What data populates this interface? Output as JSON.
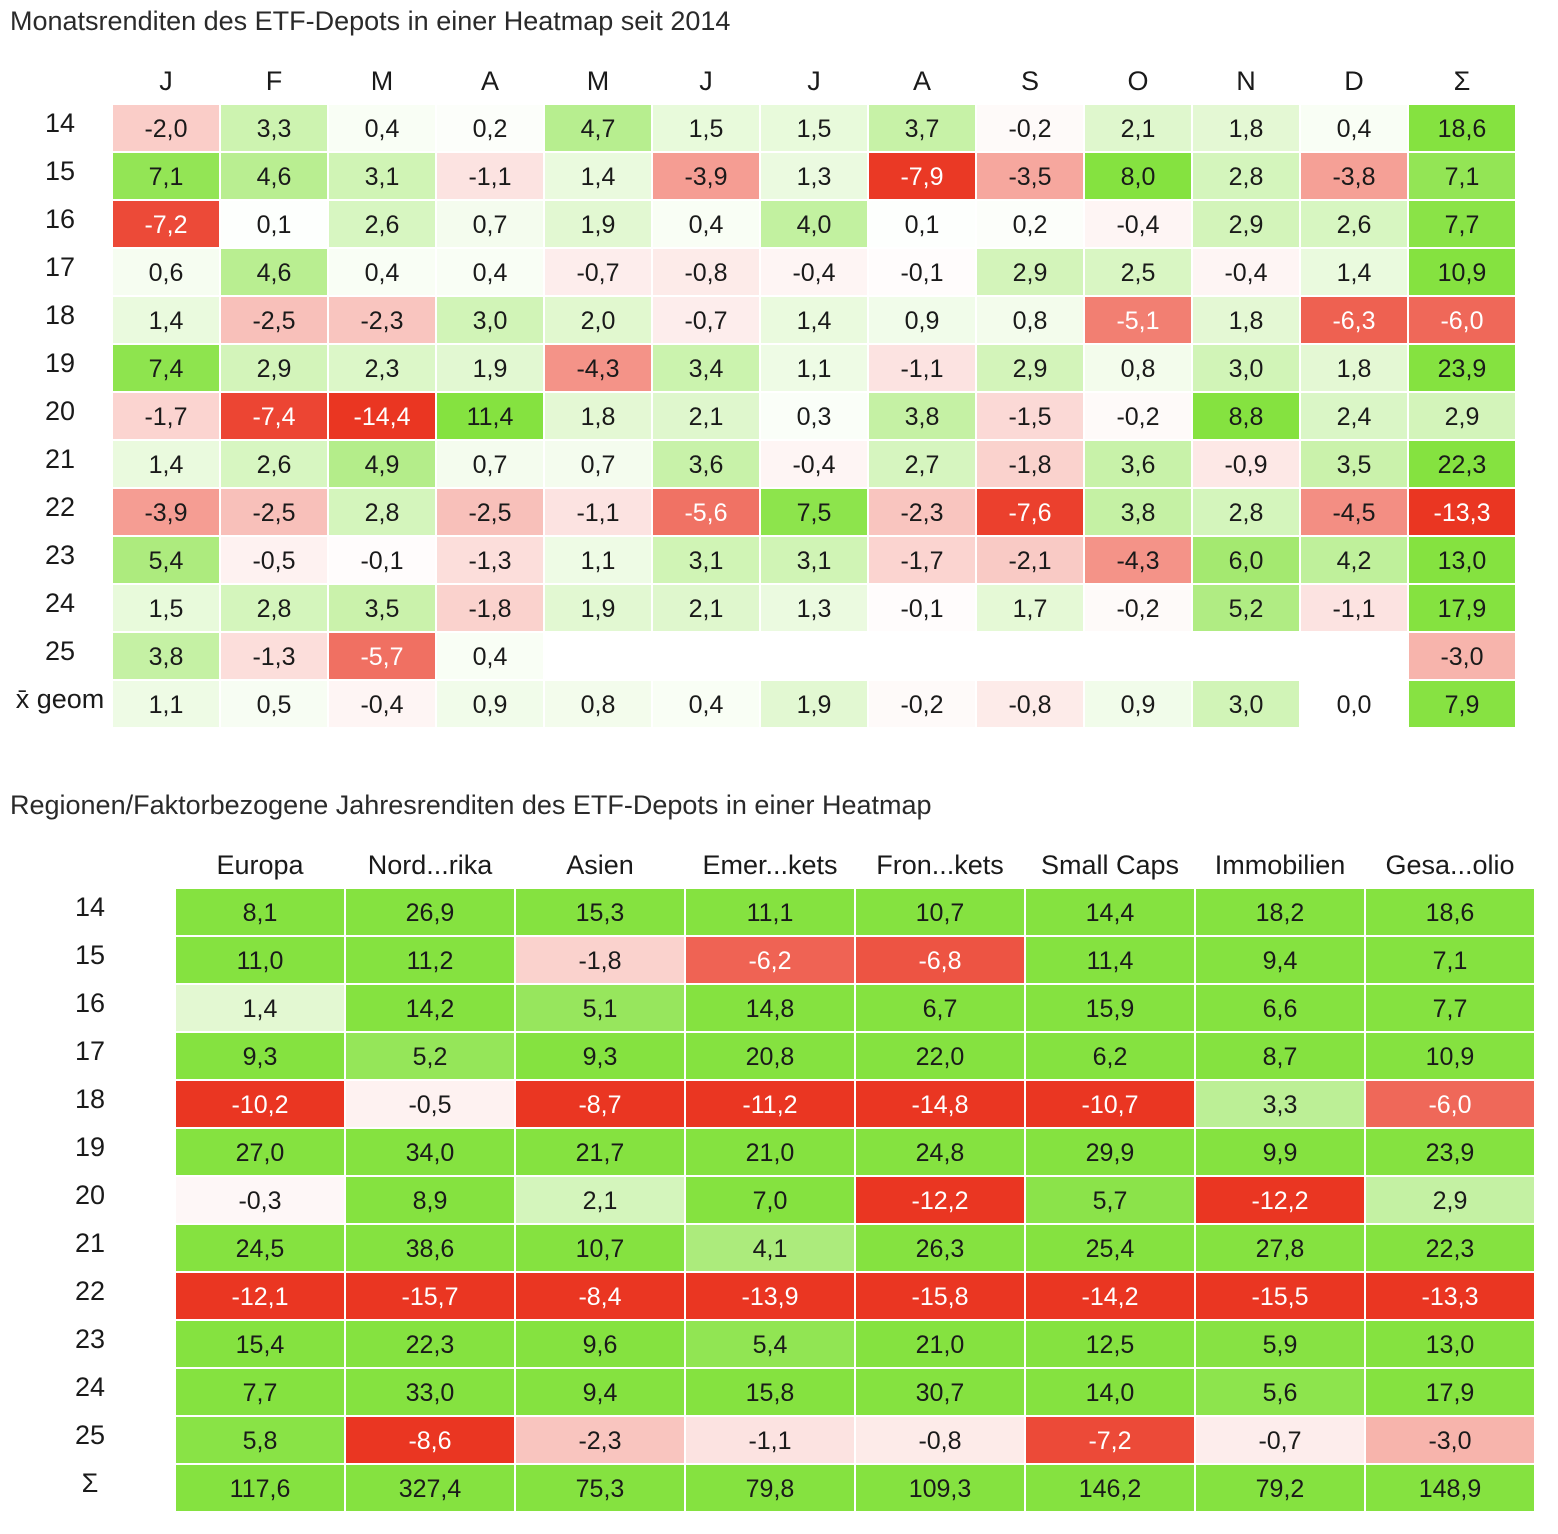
{
  "chart_data": [
    {
      "type": "heatmap",
      "title": "Monatsrenditen des ETF-Depots in einer Heatmap seit 2014",
      "columns": [
        "J",
        "F",
        "M",
        "A",
        "M",
        "J",
        "J",
        "A",
        "S",
        "O",
        "N",
        "D",
        "Σ"
      ],
      "rows": [
        "14",
        "15",
        "16",
        "17",
        "18",
        "19",
        "20",
        "21",
        "22",
        "23",
        "24",
        "25",
        "x̄ geom"
      ],
      "values": [
        [
          "-2,0",
          "3,3",
          "0,4",
          "0,2",
          "4,7",
          "1,5",
          "1,5",
          "3,7",
          "-0,2",
          "2,1",
          "1,8",
          "0,4",
          "18,6"
        ],
        [
          "7,1",
          "4,6",
          "3,1",
          "-1,1",
          "1,4",
          "-3,9",
          "1,3",
          "-7,9",
          "-3,5",
          "8,0",
          "2,8",
          "-3,8",
          "7,1"
        ],
        [
          "-7,2",
          "0,1",
          "2,6",
          "0,7",
          "1,9",
          "0,4",
          "4,0",
          "0,1",
          "0,2",
          "-0,4",
          "2,9",
          "2,6",
          "7,7"
        ],
        [
          "0,6",
          "4,6",
          "0,4",
          "0,4",
          "-0,7",
          "-0,8",
          "-0,4",
          "-0,1",
          "2,9",
          "2,5",
          "-0,4",
          "1,4",
          "10,9"
        ],
        [
          "1,4",
          "-2,5",
          "-2,3",
          "3,0",
          "2,0",
          "-0,7",
          "1,4",
          "0,9",
          "0,8",
          "-5,1",
          "1,8",
          "-6,3",
          "-6,0"
        ],
        [
          "7,4",
          "2,9",
          "2,3",
          "1,9",
          "-4,3",
          "3,4",
          "1,1",
          "-1,1",
          "2,9",
          "0,8",
          "3,0",
          "1,8",
          "23,9"
        ],
        [
          "-1,7",
          "-7,4",
          "-14,4",
          "11,4",
          "1,8",
          "2,1",
          "0,3",
          "3,8",
          "-1,5",
          "-0,2",
          "8,8",
          "2,4",
          "2,9"
        ],
        [
          "1,4",
          "2,6",
          "4,9",
          "0,7",
          "0,7",
          "3,6",
          "-0,4",
          "2,7",
          "-1,8",
          "3,6",
          "-0,9",
          "3,5",
          "22,3"
        ],
        [
          "-3,9",
          "-2,5",
          "2,8",
          "-2,5",
          "-1,1",
          "-5,6",
          "7,5",
          "-2,3",
          "-7,6",
          "3,8",
          "2,8",
          "-4,5",
          "-13,3"
        ],
        [
          "5,4",
          "-0,5",
          "-0,1",
          "-1,3",
          "1,1",
          "3,1",
          "3,1",
          "-1,7",
          "-2,1",
          "-4,3",
          "6,0",
          "4,2",
          "13,0"
        ],
        [
          "1,5",
          "2,8",
          "3,5",
          "-1,8",
          "1,9",
          "2,1",
          "1,3",
          "-0,1",
          "1,7",
          "-0,2",
          "5,2",
          "-1,1",
          "17,9"
        ],
        [
          "3,8",
          "-1,3",
          "-5,7",
          "0,4",
          null,
          null,
          null,
          null,
          null,
          null,
          null,
          null,
          "-3,0"
        ],
        [
          "1,1",
          "0,5",
          "-0,4",
          "0,9",
          "0,8",
          "0,4",
          "1,9",
          "-0,2",
          "-0,8",
          "0,9",
          "3,0",
          "0,0",
          "7,9"
        ]
      ]
    },
    {
      "type": "heatmap",
      "title": "Regionen/Faktorbezogene Jahresrenditen des ETF-Depots in einer Heatmap",
      "columns": [
        "Europa",
        "Nord...rika",
        "Asien",
        "Emer...kets",
        "Fron...kets",
        "Small Caps",
        "Immobilien",
        "Gesa...olio"
      ],
      "rows": [
        "14",
        "15",
        "16",
        "17",
        "18",
        "19",
        "20",
        "21",
        "22",
        "23",
        "24",
        "25",
        "Σ"
      ],
      "values": [
        [
          "8,1",
          "26,9",
          "15,3",
          "11,1",
          "10,7",
          "14,4",
          "18,2",
          "18,6"
        ],
        [
          "11,0",
          "11,2",
          "-1,8",
          "-6,2",
          "-6,8",
          "11,4",
          "9,4",
          "7,1"
        ],
        [
          "1,4",
          "14,2",
          "5,1",
          "14,8",
          "6,7",
          "15,9",
          "6,6",
          "7,7"
        ],
        [
          "9,3",
          "5,2",
          "9,3",
          "20,8",
          "22,0",
          "6,2",
          "8,7",
          "10,9"
        ],
        [
          "-10,2",
          "-0,5",
          "-8,7",
          "-11,2",
          "-14,8",
          "-10,7",
          "3,3",
          "-6,0"
        ],
        [
          "27,0",
          "34,0",
          "21,7",
          "21,0",
          "24,8",
          "29,9",
          "9,9",
          "23,9"
        ],
        [
          "-0,3",
          "8,9",
          "2,1",
          "7,0",
          "-12,2",
          "5,7",
          "-12,2",
          "2,9"
        ],
        [
          "24,5",
          "38,6",
          "10,7",
          "4,1",
          "26,3",
          "25,4",
          "27,8",
          "22,3"
        ],
        [
          "-12,1",
          "-15,7",
          "-8,4",
          "-13,9",
          "-15,8",
          "-14,2",
          "-15,5",
          "-13,3"
        ],
        [
          "15,4",
          "22,3",
          "9,6",
          "5,4",
          "21,0",
          "12,5",
          "5,9",
          "13,0"
        ],
        [
          "7,7",
          "33,0",
          "9,4",
          "15,8",
          "30,7",
          "14,0",
          "5,6",
          "17,9"
        ],
        [
          "5,8",
          "-8,6",
          "-2,3",
          "-1,1",
          "-0,8",
          "-7,2",
          "-0,7",
          "-3,0"
        ],
        [
          "117,6",
          "327,4",
          "75,3",
          "79,8",
          "109,3",
          "146,2",
          "79,2",
          "148,9"
        ]
      ]
    }
  ]
}
